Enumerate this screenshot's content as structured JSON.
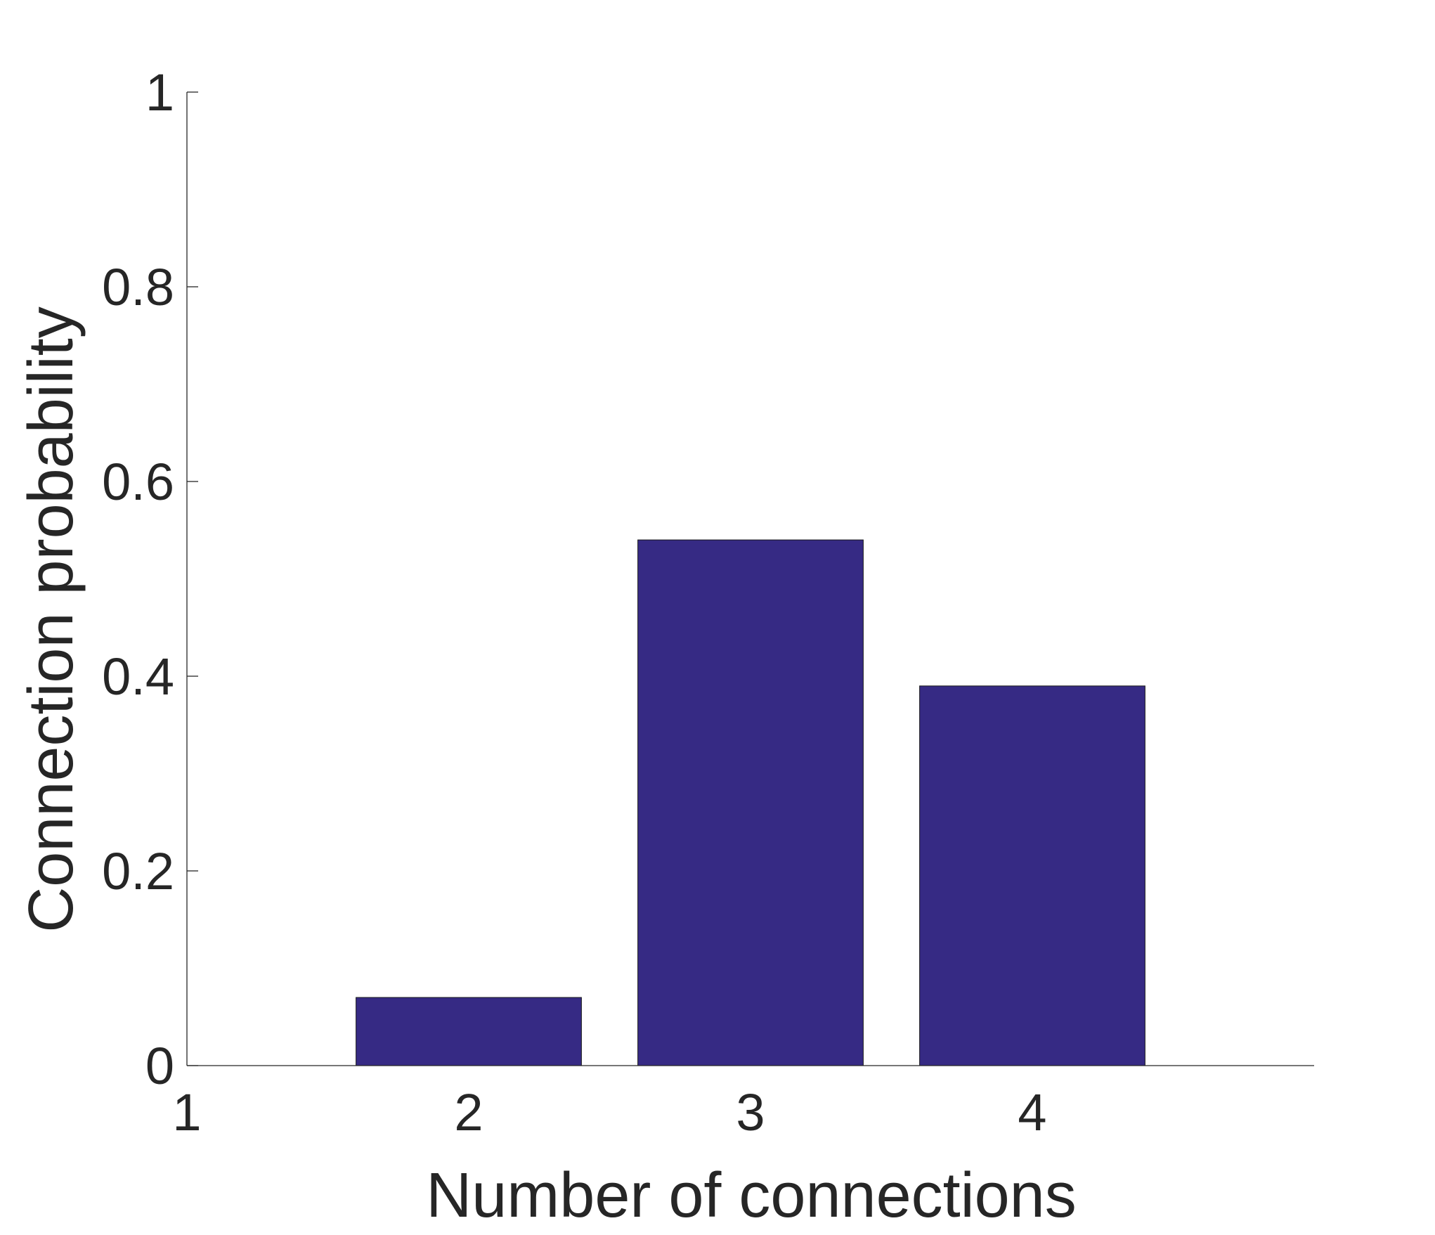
{
  "chart_data": {
    "type": "bar",
    "x": [
      1,
      2,
      3,
      4
    ],
    "values": [
      0.0,
      0.07,
      0.54,
      0.39
    ],
    "xlabel": "Number of connections",
    "ylabel": "Connection probability",
    "xlim": [
      1,
      5
    ],
    "ylim": [
      0,
      1
    ],
    "xticks": [
      1,
      2,
      3,
      4
    ],
    "xtick_labels": [
      "1",
      "2",
      "3",
      "4"
    ],
    "yticks": [
      0,
      0.2,
      0.4,
      0.6,
      0.8,
      1
    ],
    "ytick_labels": [
      "0",
      "0.2",
      "0.4",
      "0.6",
      "0.8",
      "1"
    ],
    "grid": false,
    "bar_color": "#362a84",
    "axis_color": "#262626"
  }
}
